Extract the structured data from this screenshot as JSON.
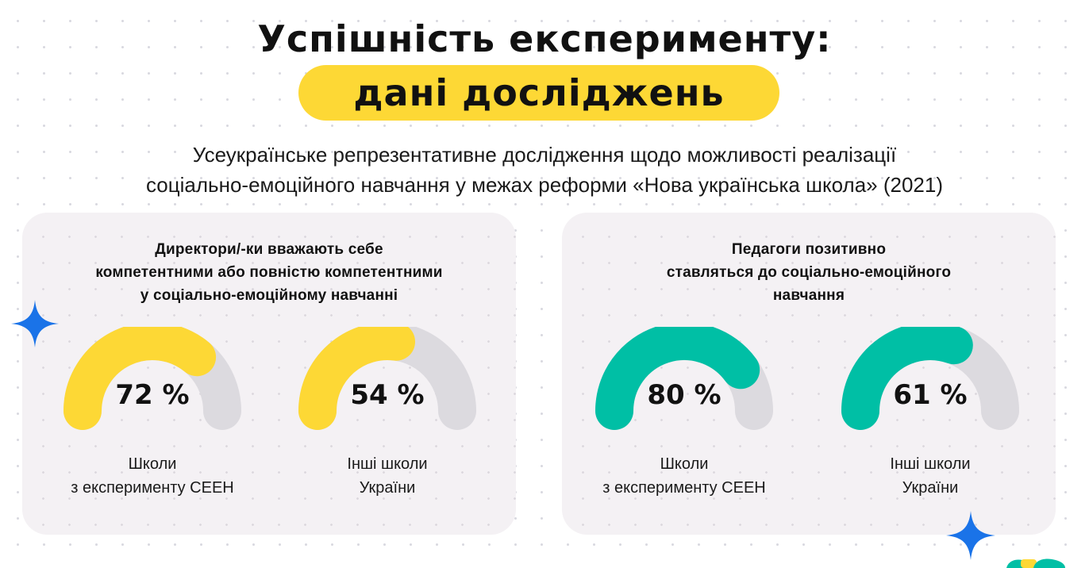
{
  "title": {
    "line1": "Успішність експерименту:",
    "line2": "дані досліджень",
    "highlight_color": "#fdd835"
  },
  "subtitle": {
    "line1": "Усеукраїнське репрезентативне дослідження щодо можливості реалізації",
    "line2": "соціально-емоційного навчання у межах реформи «Нова українська школа» (2021)"
  },
  "cards": [
    {
      "heading": [
        "Директори/-ки вважають себе",
        "компетентними або повністю компетентними",
        "у соціально-емоційному навчанні"
      ],
      "accent_color": "#fdd835",
      "gauges": [
        {
          "value": 72,
          "value_label": "72 %",
          "label": [
            "Школи",
            "з експерименту СЕЕН"
          ]
        },
        {
          "value": 54,
          "value_label": "54 %",
          "label": [
            "Інші школи",
            "України"
          ]
        }
      ]
    },
    {
      "heading": [
        "Педагоги позитивно",
        "ставляться до соціально-емоційного",
        "навчання"
      ],
      "accent_color": "#00bfa5",
      "gauges": [
        {
          "value": 80,
          "value_label": "80 %",
          "label": [
            "Школи",
            "з експерименту СЕЕН"
          ]
        },
        {
          "value": 61,
          "value_label": "61 %",
          "label": [
            "Інші школи",
            "України"
          ]
        }
      ]
    }
  ],
  "colors": {
    "track": "#dcdadf",
    "sparkle": "#1a73e8",
    "card_background": "#f4f1f4"
  },
  "icons": [
    "sparkle-icon",
    "sparkle-icon",
    "logo-icon"
  ]
}
